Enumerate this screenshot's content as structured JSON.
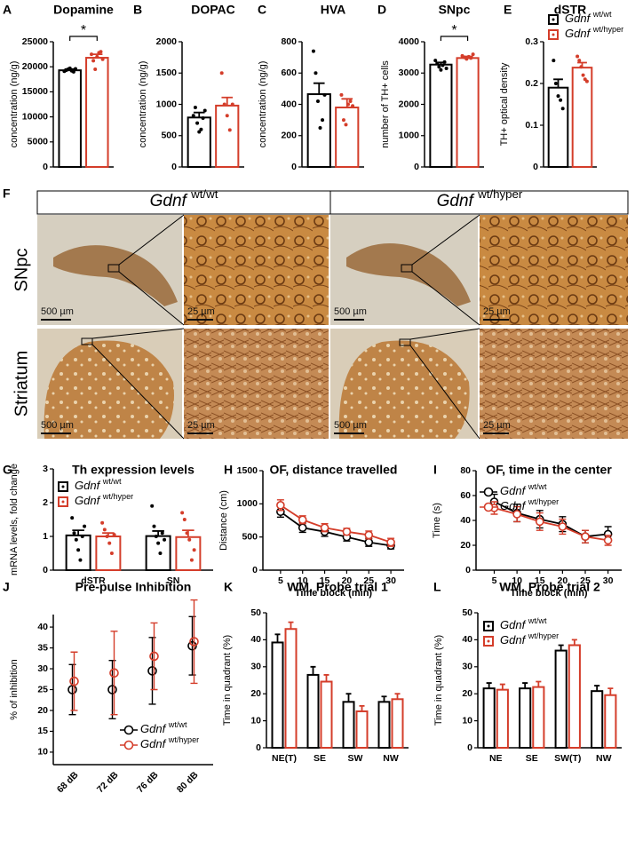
{
  "chart_data": [
    {
      "type": "bar",
      "panel": "A",
      "title": "Dopamine",
      "y_label": "concentration (ng/g)",
      "ylim": [
        0,
        25000
      ],
      "yticks": [
        0,
        5000,
        10000,
        15000,
        20000,
        25000
      ],
      "annotation": "*",
      "series": [
        {
          "color": "#000000",
          "values": [
            19300
          ],
          "errors": [
            250
          ],
          "points": [
            [
              19100,
              19300,
              19500,
              19700,
              19200,
              19000,
              19600
            ]
          ]
        },
        {
          "color": "#d43d2a",
          "values": [
            21800
          ],
          "errors": [
            700
          ],
          "points": [
            [
              22500,
              21200,
              19500,
              22000,
              22800,
              23000,
              21500
            ]
          ]
        }
      ]
    },
    {
      "type": "bar",
      "panel": "B",
      "title": "DOPAC",
      "y_label": "concentration (ng/g)",
      "ylim": [
        0,
        2000
      ],
      "yticks": [
        0,
        500,
        1000,
        1500,
        2000
      ],
      "series": [
        {
          "color": "#000000",
          "values": [
            790
          ],
          "errors": [
            80
          ],
          "points": [
            [
              820,
              950,
              700,
              560,
              600,
              780,
              900
            ]
          ]
        },
        {
          "color": "#d43d2a",
          "values": [
            980
          ],
          "errors": [
            130
          ],
          "points": [
            [
              1500,
              1000,
              820,
              590,
              1000
            ]
          ]
        }
      ]
    },
    {
      "type": "bar",
      "panel": "C",
      "title": "HVA",
      "y_label": "concentration (ng/g)",
      "ylim": [
        0,
        800
      ],
      "yticks": [
        0,
        200,
        400,
        600,
        800
      ],
      "series": [
        {
          "color": "#000000",
          "values": [
            465
          ],
          "errors": [
            70
          ],
          "points": [
            [
              740,
              600,
              420,
              250,
              300,
              460
            ]
          ]
        },
        {
          "color": "#d43d2a",
          "values": [
            380
          ],
          "errors": [
            55
          ],
          "points": [
            [
              460,
              300,
              270,
              400,
              420,
              390
            ]
          ]
        }
      ]
    },
    {
      "type": "bar",
      "panel": "D",
      "title": "SNpc",
      "y_label": "number of TH+ cells",
      "ylim": [
        0,
        4000
      ],
      "yticks": [
        0,
        1000,
        2000,
        3000,
        4000
      ],
      "annotation": "*",
      "series": [
        {
          "color": "#000000",
          "values": [
            3270
          ],
          "errors": [
            70
          ],
          "points": [
            [
              3400,
              3300,
              3200,
              3100,
              3250,
              3350,
              3150
            ]
          ]
        },
        {
          "color": "#d43d2a",
          "values": [
            3480
          ],
          "errors": [
            50
          ],
          "points": [
            [
              3550,
              3500,
              3450,
              3520,
              3480,
              3600
            ]
          ]
        }
      ]
    },
    {
      "type": "bar",
      "panel": "E",
      "title": "dSTR",
      "y_label": "TH+ optical density",
      "ylim": [
        0,
        0.3
      ],
      "yticks": [
        0,
        0.1,
        0.2,
        0.3
      ],
      "series": [
        {
          "name": "Gdnf wt/wt",
          "color": "#000000",
          "values": [
            0.19
          ],
          "errors": [
            0.02
          ],
          "points": [
            [
              0.255,
              0.2,
              0.17,
              0.16,
              0.14
            ]
          ]
        },
        {
          "name": "Gdnf wt/hyper",
          "color": "#d43d2a",
          "values": [
            0.238
          ],
          "errors": [
            0.012
          ],
          "points": [
            [
              0.265,
              0.255,
              0.24,
              0.22,
              0.21,
              0.205
            ]
          ]
        }
      ]
    },
    {
      "type": "bar",
      "panel": "G",
      "title": "Th expression levels",
      "y_label": "mRNA levels, fold change",
      "ylim": [
        0,
        3
      ],
      "yticks": [
        0,
        1,
        2,
        3
      ],
      "categories": [
        "dSTR",
        "SN"
      ],
      "series": [
        {
          "name": "Gdnf wt/wt",
          "color": "#000000",
          "values": [
            1.03,
            1.01
          ],
          "errors": [
            0.15,
            0.15
          ],
          "points": [
            [
              1.55,
              1.1,
              0.9,
              0.6,
              0.3,
              1.0,
              1.3
            ],
            [
              1.9,
              1.3,
              1.0,
              0.8,
              0.5,
              1.1,
              0.9
            ]
          ]
        },
        {
          "name": "Gdnf wt/hyper",
          "color": "#d43d2a",
          "values": [
            1.0,
            0.98
          ],
          "errors": [
            0.1,
            0.2
          ],
          "points": [
            [
              1.4,
              1.2,
              1.0,
              0.8,
              0.5,
              1.05
            ],
            [
              1.7,
              1.5,
              1.1,
              0.9,
              0.3,
              0.6
            ]
          ]
        }
      ]
    },
    {
      "type": "line",
      "panel": "H",
      "title": "OF, distance travelled",
      "x_label": "Time block (min)",
      "y_label": "Distance (cm)",
      "x": [
        5,
        10,
        15,
        20,
        25,
        30
      ],
      "xlim": [
        1,
        33
      ],
      "xticks": [
        5,
        10,
        15,
        20,
        25,
        30
      ],
      "ylim": [
        0,
        1500
      ],
      "yticks": [
        0,
        500,
        1000,
        1500
      ],
      "series": [
        {
          "color": "#000000",
          "values": [
            880,
            640,
            580,
            500,
            420,
            370
          ],
          "errors": [
            80,
            70,
            70,
            60,
            60,
            50
          ]
        },
        {
          "color": "#d43d2a",
          "values": [
            980,
            760,
            640,
            580,
            530,
            420
          ],
          "errors": [
            80,
            60,
            60,
            50,
            60,
            60
          ]
        }
      ]
    },
    {
      "type": "line",
      "panel": "I",
      "title": "OF, time in the center",
      "x_label": "Time block (min)",
      "y_label": "Time (s)",
      "x": [
        5,
        10,
        15,
        20,
        25,
        30
      ],
      "xlim": [
        1,
        33
      ],
      "xticks": [
        5,
        10,
        15,
        20,
        25,
        30
      ],
      "ylim": [
        0,
        80
      ],
      "yticks": [
        0,
        20,
        40,
        60,
        80
      ],
      "series": [
        {
          "name": "Gdnf wt/wt",
          "color": "#000000",
          "values": [
            55,
            46,
            41,
            37,
            27,
            29
          ],
          "errors": [
            6,
            7,
            7,
            6,
            5,
            6
          ]
        },
        {
          "name": "Gdnf wt/hyper",
          "color": "#d43d2a",
          "values": [
            50,
            45,
            39,
            35,
            27,
            24
          ],
          "errors": [
            5,
            6,
            7,
            6,
            5,
            4
          ]
        }
      ]
    },
    {
      "type": "dot",
      "panel": "J",
      "title": "Pre-pulse Inhibition",
      "y_label": "% of inhibition",
      "categories": [
        "68 dB",
        "72 dB",
        "76 dB",
        "80 dB"
      ],
      "ylim": [
        7,
        43
      ],
      "yticks": [
        10,
        15,
        20,
        25,
        30,
        35,
        40
      ],
      "series": [
        {
          "name": "Gdnf wt/wt",
          "color": "#000000",
          "values": [
            25,
            25,
            29.5,
            35.5
          ],
          "errors": [
            6,
            7,
            8,
            7
          ]
        },
        {
          "name": "Gdnf wt/hyper",
          "color": "#d43d2a",
          "values": [
            27,
            29,
            33,
            36.5
          ],
          "errors": [
            7,
            10,
            8,
            10
          ]
        }
      ]
    },
    {
      "type": "bar",
      "panel": "K",
      "title": "WM, Probe trial 1",
      "y_label": "Time in quadrant (%)",
      "categories": [
        "NE(T)",
        "SE",
        "SW",
        "NW"
      ],
      "ylim": [
        0,
        50
      ],
      "yticks": [
        0,
        10,
        20,
        30,
        40,
        50
      ],
      "series": [
        {
          "color": "#000000",
          "values": [
            39,
            27,
            17,
            17
          ],
          "errors": [
            3,
            3,
            3,
            2
          ]
        },
        {
          "color": "#d43d2a",
          "values": [
            44,
            24.5,
            13.5,
            18
          ],
          "errors": [
            2.5,
            2.5,
            2,
            2
          ]
        }
      ]
    },
    {
      "type": "bar",
      "panel": "L",
      "title": "WM, Probe trial 2",
      "y_label": "Time in quadrant (%)",
      "categories": [
        "NE",
        "SE",
        "SW(T)",
        "NW"
      ],
      "ylim": [
        0,
        50
      ],
      "yticks": [
        0,
        10,
        20,
        30,
        40,
        50
      ],
      "series": [
        {
          "name": "Gdnf wt/wt",
          "color": "#000000",
          "values": [
            22,
            22,
            36,
            21
          ],
          "errors": [
            2,
            2,
            2,
            2
          ]
        },
        {
          "name": "Gdnf wt/hyper",
          "color": "#d43d2a",
          "values": [
            21.5,
            22.5,
            38,
            19.5
          ],
          "errors": [
            2,
            2,
            2,
            2.5
          ]
        }
      ]
    }
  ],
  "image_panel": {
    "panel": "F",
    "columns": [
      "Gdnf wt/wt",
      "Gdnf wt/hyper"
    ],
    "rows": [
      "SNpc",
      "Striatum"
    ],
    "scale_bars": [
      "500 µm",
      "25 µm"
    ]
  }
}
